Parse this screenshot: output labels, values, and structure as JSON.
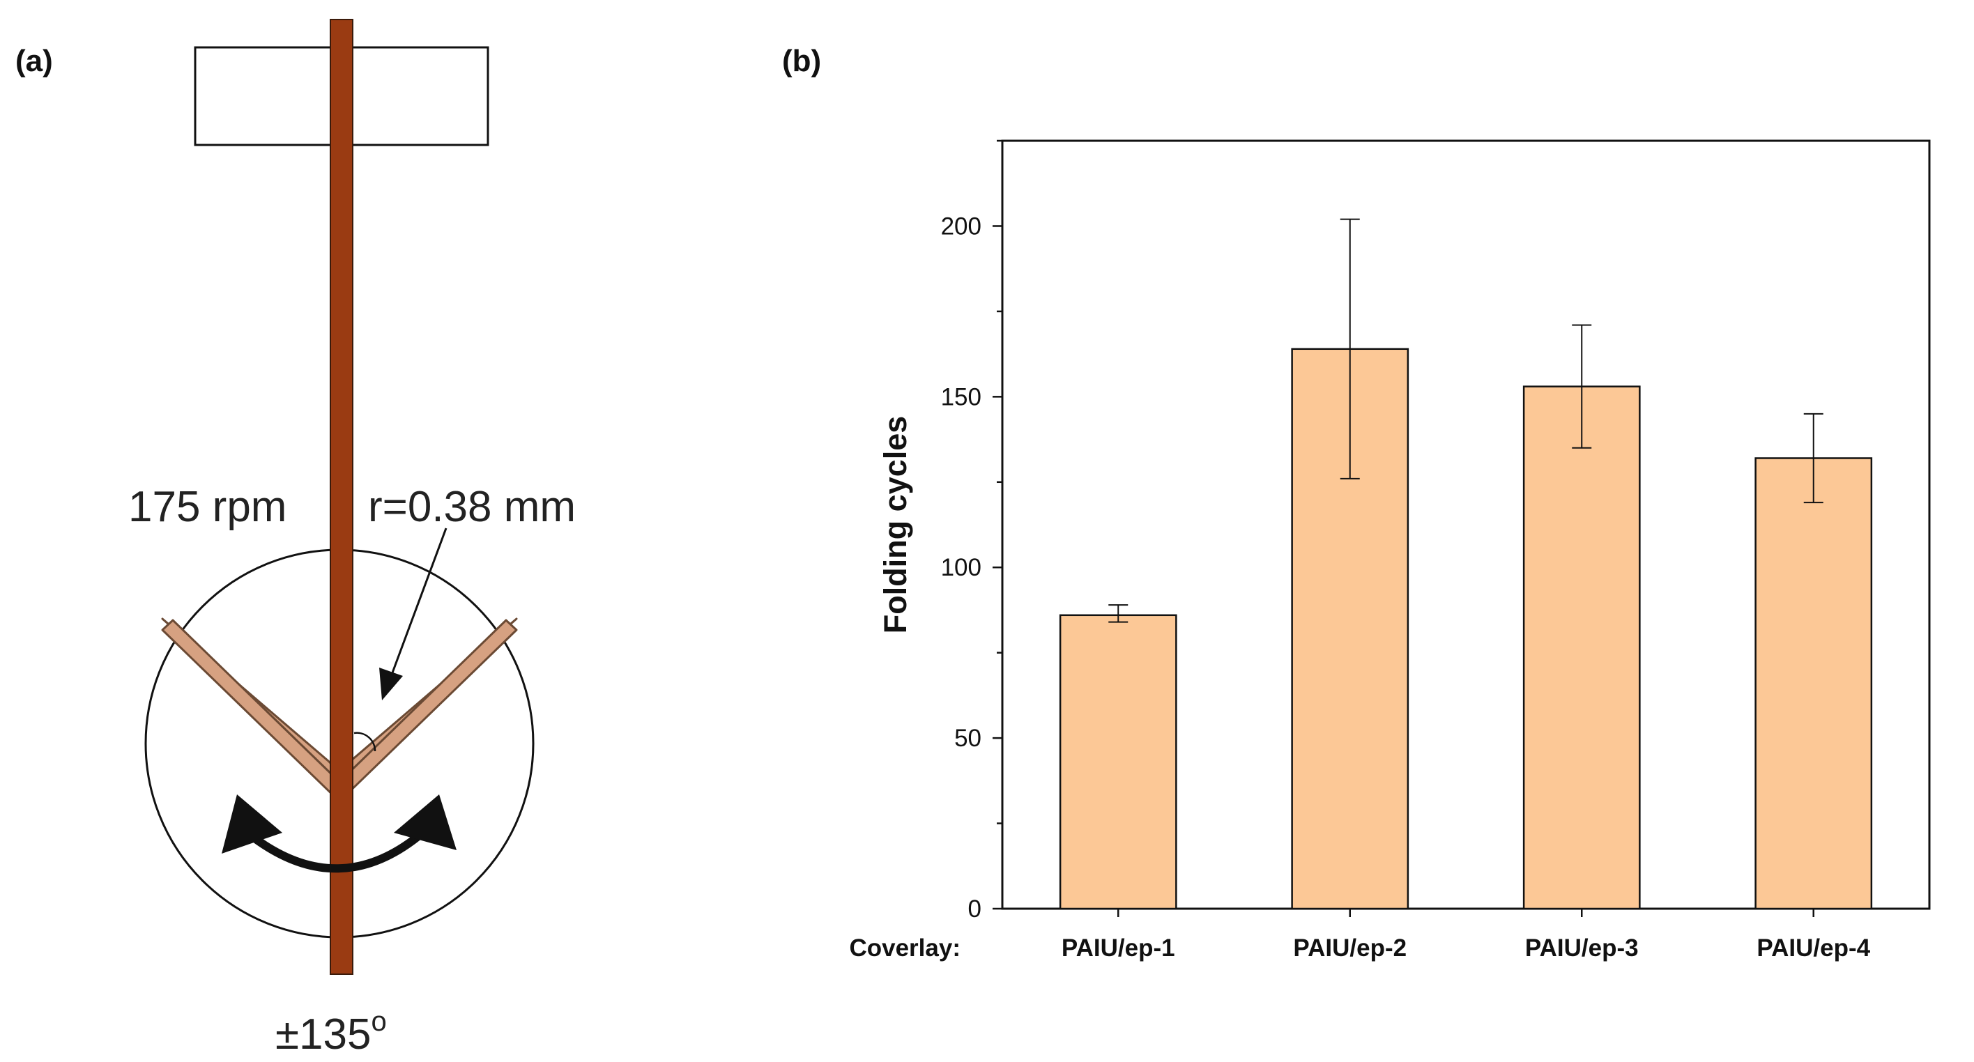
{
  "panel_a": {
    "label": "(a)",
    "speed": "175 rpm",
    "radius": "r=0.38 mm",
    "angle": "±135",
    "angle_unit": "o",
    "colors": {
      "rod": "#9a3b12",
      "sample": "#d6a181",
      "arrow": "#111111"
    }
  },
  "panel_b": {
    "label": "(b)",
    "category_prefix": "Coverlay:"
  },
  "chart_data": {
    "type": "bar",
    "categories": [
      "PAIU/ep-1",
      "PAIU/ep-2",
      "PAIU/ep-3",
      "PAIU/ep-4"
    ],
    "values": [
      86,
      164,
      153,
      132
    ],
    "error_low": [
      84,
      126,
      135,
      119
    ],
    "error_high": [
      89,
      202,
      171,
      145
    ],
    "title": "",
    "xlabel": "",
    "ylabel": "Folding cycles",
    "ylim": [
      0,
      225
    ],
    "yticks": [
      0,
      50,
      100,
      150,
      200
    ],
    "bar_color": "#fcc896",
    "grid": false
  }
}
